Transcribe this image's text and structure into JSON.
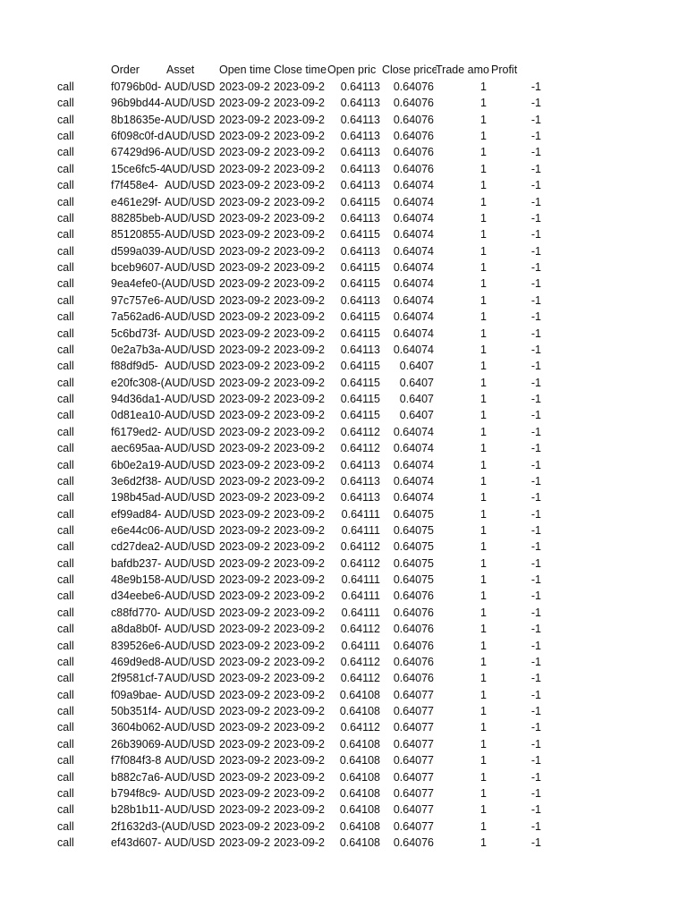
{
  "header": [
    "",
    "Order",
    "Asset",
    "Open time",
    "Close time",
    "Open pric",
    "Close price",
    "Trade amo",
    "Profit"
  ],
  "defaults": {
    "type": "call",
    "asset": "AUD/USD",
    "open_time": "2023-09-2",
    "close_time": "2023-09-2",
    "amount": "1",
    "profit": "-1"
  },
  "rows": [
    [
      "f0796b0d-",
      "0.64113",
      "0.64076"
    ],
    [
      "96b9bd44-",
      "0.64113",
      "0.64076"
    ],
    [
      "8b18635e-",
      "0.64113",
      "0.64076"
    ],
    [
      "6f098c0f-d",
      "0.64113",
      "0.64076"
    ],
    [
      "67429d96-",
      "0.64113",
      "0.64076"
    ],
    [
      "15ce6fc5-4",
      "0.64113",
      "0.64076"
    ],
    [
      "f7f458e4-",
      "0.64113",
      "0.64074"
    ],
    [
      "e461e29f-",
      "0.64115",
      "0.64074"
    ],
    [
      "88285beb-",
      "0.64113",
      "0.64074"
    ],
    [
      "85120855-",
      "0.64115",
      "0.64074"
    ],
    [
      "d599a039-",
      "0.64113",
      "0.64074"
    ],
    [
      "bceb9607-",
      "0.64115",
      "0.64074"
    ],
    [
      "9ea4efe0-(",
      "0.64115",
      "0.64074"
    ],
    [
      "97c757e6-",
      "0.64113",
      "0.64074"
    ],
    [
      "7a562ad6-",
      "0.64115",
      "0.64074"
    ],
    [
      "5c6bd73f-",
      "0.64115",
      "0.64074"
    ],
    [
      "0e2a7b3a-",
      "0.64113",
      "0.64074"
    ],
    [
      "f88df9d5-",
      "0.64115",
      "0.6407"
    ],
    [
      "e20fc308-(",
      "0.64115",
      "0.6407"
    ],
    [
      "94d36da1-",
      "0.64115",
      "0.6407"
    ],
    [
      "0d81ea10-",
      "0.64115",
      "0.6407"
    ],
    [
      "f6179ed2-",
      "0.64112",
      "0.64074"
    ],
    [
      "aec695aa-",
      "0.64112",
      "0.64074"
    ],
    [
      "6b0e2a19-",
      "0.64113",
      "0.64074"
    ],
    [
      "3e6d2f38-",
      "0.64113",
      "0.64074"
    ],
    [
      "198b45ad-",
      "0.64113",
      "0.64074"
    ],
    [
      "ef99ad84-",
      "0.64111",
      "0.64075"
    ],
    [
      "e6e44c06-",
      "0.64111",
      "0.64075"
    ],
    [
      "cd27dea2-",
      "0.64112",
      "0.64075"
    ],
    [
      "bafdb237-",
      "0.64112",
      "0.64075"
    ],
    [
      "48e9b158-",
      "0.64111",
      "0.64075"
    ],
    [
      "d34eebe6-",
      "0.64111",
      "0.64076"
    ],
    [
      "c88fd770-",
      "0.64111",
      "0.64076"
    ],
    [
      "a8da8b0f-",
      "0.64112",
      "0.64076"
    ],
    [
      "839526e6-",
      "0.64111",
      "0.64076"
    ],
    [
      "469d9ed8-",
      "0.64112",
      "0.64076"
    ],
    [
      "2f9581cf-7",
      "0.64112",
      "0.64076"
    ],
    [
      "f09a9bae-",
      "0.64108",
      "0.64077"
    ],
    [
      "50b351f4-",
      "0.64108",
      "0.64077"
    ],
    [
      "3604b062-",
      "0.64112",
      "0.64077"
    ],
    [
      "26b39069-",
      "0.64108",
      "0.64077"
    ],
    [
      "f7f084f3-8",
      "0.64108",
      "0.64077"
    ],
    [
      "b882c7a6-",
      "0.64108",
      "0.64077"
    ],
    [
      "b794f8c9-",
      "0.64108",
      "0.64077"
    ],
    [
      "b28b1b11-",
      "0.64108",
      "0.64077"
    ],
    [
      "2f1632d3-(",
      "0.64108",
      "0.64077"
    ],
    [
      "ef43d607-",
      "0.64108",
      "0.64076"
    ]
  ]
}
